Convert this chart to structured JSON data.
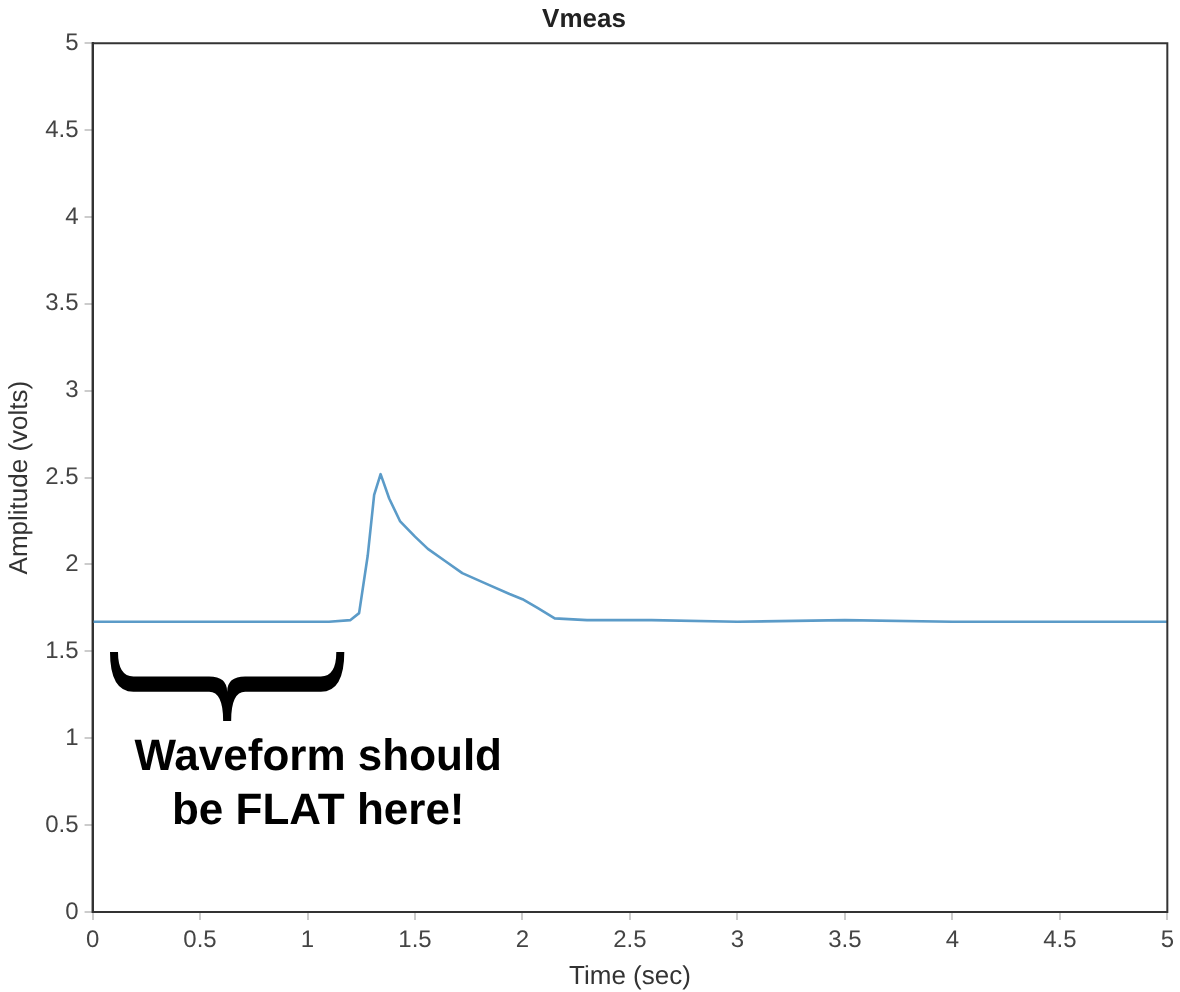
{
  "chart_data": {
    "type": "line",
    "title": "Vmeas",
    "xlabel": "Time (sec)",
    "ylabel": "Amplitude (volts)",
    "annotations": [
      "Waveform should be FLAT here!"
    ],
    "x": [
      0,
      0.3,
      0.6,
      0.9,
      1.1,
      1.2,
      1.24,
      1.28,
      1.31,
      1.34,
      1.38,
      1.43,
      1.5,
      1.56,
      1.64,
      1.72,
      1.83,
      1.94,
      2.0,
      2.07,
      2.15,
      2.3,
      2.6,
      3,
      3.5,
      4,
      4.5,
      5
    ],
    "series": [
      {
        "color": "#5b9bc8",
        "values": [
          1.67,
          1.67,
          1.67,
          1.67,
          1.67,
          1.68,
          1.72,
          2.05,
          2.4,
          2.52,
          2.38,
          2.25,
          2.16,
          2.09,
          2.02,
          1.95,
          1.89,
          1.83,
          1.8,
          1.75,
          1.69,
          1.68,
          1.68,
          1.67,
          1.68,
          1.67,
          1.67,
          1.67
        ]
      }
    ],
    "xlim": [
      0,
      5
    ],
    "xticks": [
      0,
      0.5,
      1,
      1.5,
      2,
      2.5,
      3,
      3.5,
      4,
      4.5,
      5
    ],
    "ylim": [
      0,
      5
    ],
    "yticks": [
      0,
      0.5,
      1,
      1.5,
      2,
      2.5,
      3,
      3.5,
      4,
      4.5,
      5
    ],
    "grid": false,
    "legend": false,
    "marker": "none",
    "line_style": "solid"
  }
}
